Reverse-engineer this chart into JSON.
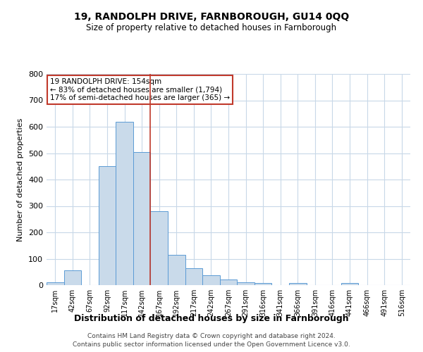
{
  "title": "19, RANDOLPH DRIVE, FARNBOROUGH, GU14 0QQ",
  "subtitle": "Size of property relative to detached houses in Farnborough",
  "xlabel": "Distribution of detached houses by size in Farnborough",
  "ylabel": "Number of detached properties",
  "footnote1": "Contains HM Land Registry data © Crown copyright and database right 2024.",
  "footnote2": "Contains public sector information licensed under the Open Government Licence v3.0.",
  "categories": [
    "17sqm",
    "42sqm",
    "67sqm",
    "92sqm",
    "117sqm",
    "142sqm",
    "167sqm",
    "192sqm",
    "217sqm",
    "242sqm",
    "267sqm",
    "291sqm",
    "316sqm",
    "341sqm",
    "366sqm",
    "391sqm",
    "416sqm",
    "441sqm",
    "466sqm",
    "491sqm",
    "516sqm"
  ],
  "values": [
    10,
    55,
    0,
    450,
    620,
    505,
    280,
    115,
    65,
    38,
    22,
    10,
    8,
    0,
    8,
    0,
    0,
    7,
    0,
    0,
    0
  ],
  "bar_color": "#c9daea",
  "bar_edge_color": "#5b9bd5",
  "vline_x": 5.5,
  "vline_color": "#c0392b",
  "annotation_title": "19 RANDOLPH DRIVE: 154sqm",
  "annotation_line1": "← 83% of detached houses are smaller (1,794)",
  "annotation_line2": "17% of semi-detached houses are larger (365) →",
  "annotation_box_color": "#c0392b",
  "ylim": [
    0,
    800
  ],
  "yticks": [
    0,
    100,
    200,
    300,
    400,
    500,
    600,
    700,
    800
  ],
  "background_color": "#ffffff",
  "grid_color": "#c8d8e8"
}
